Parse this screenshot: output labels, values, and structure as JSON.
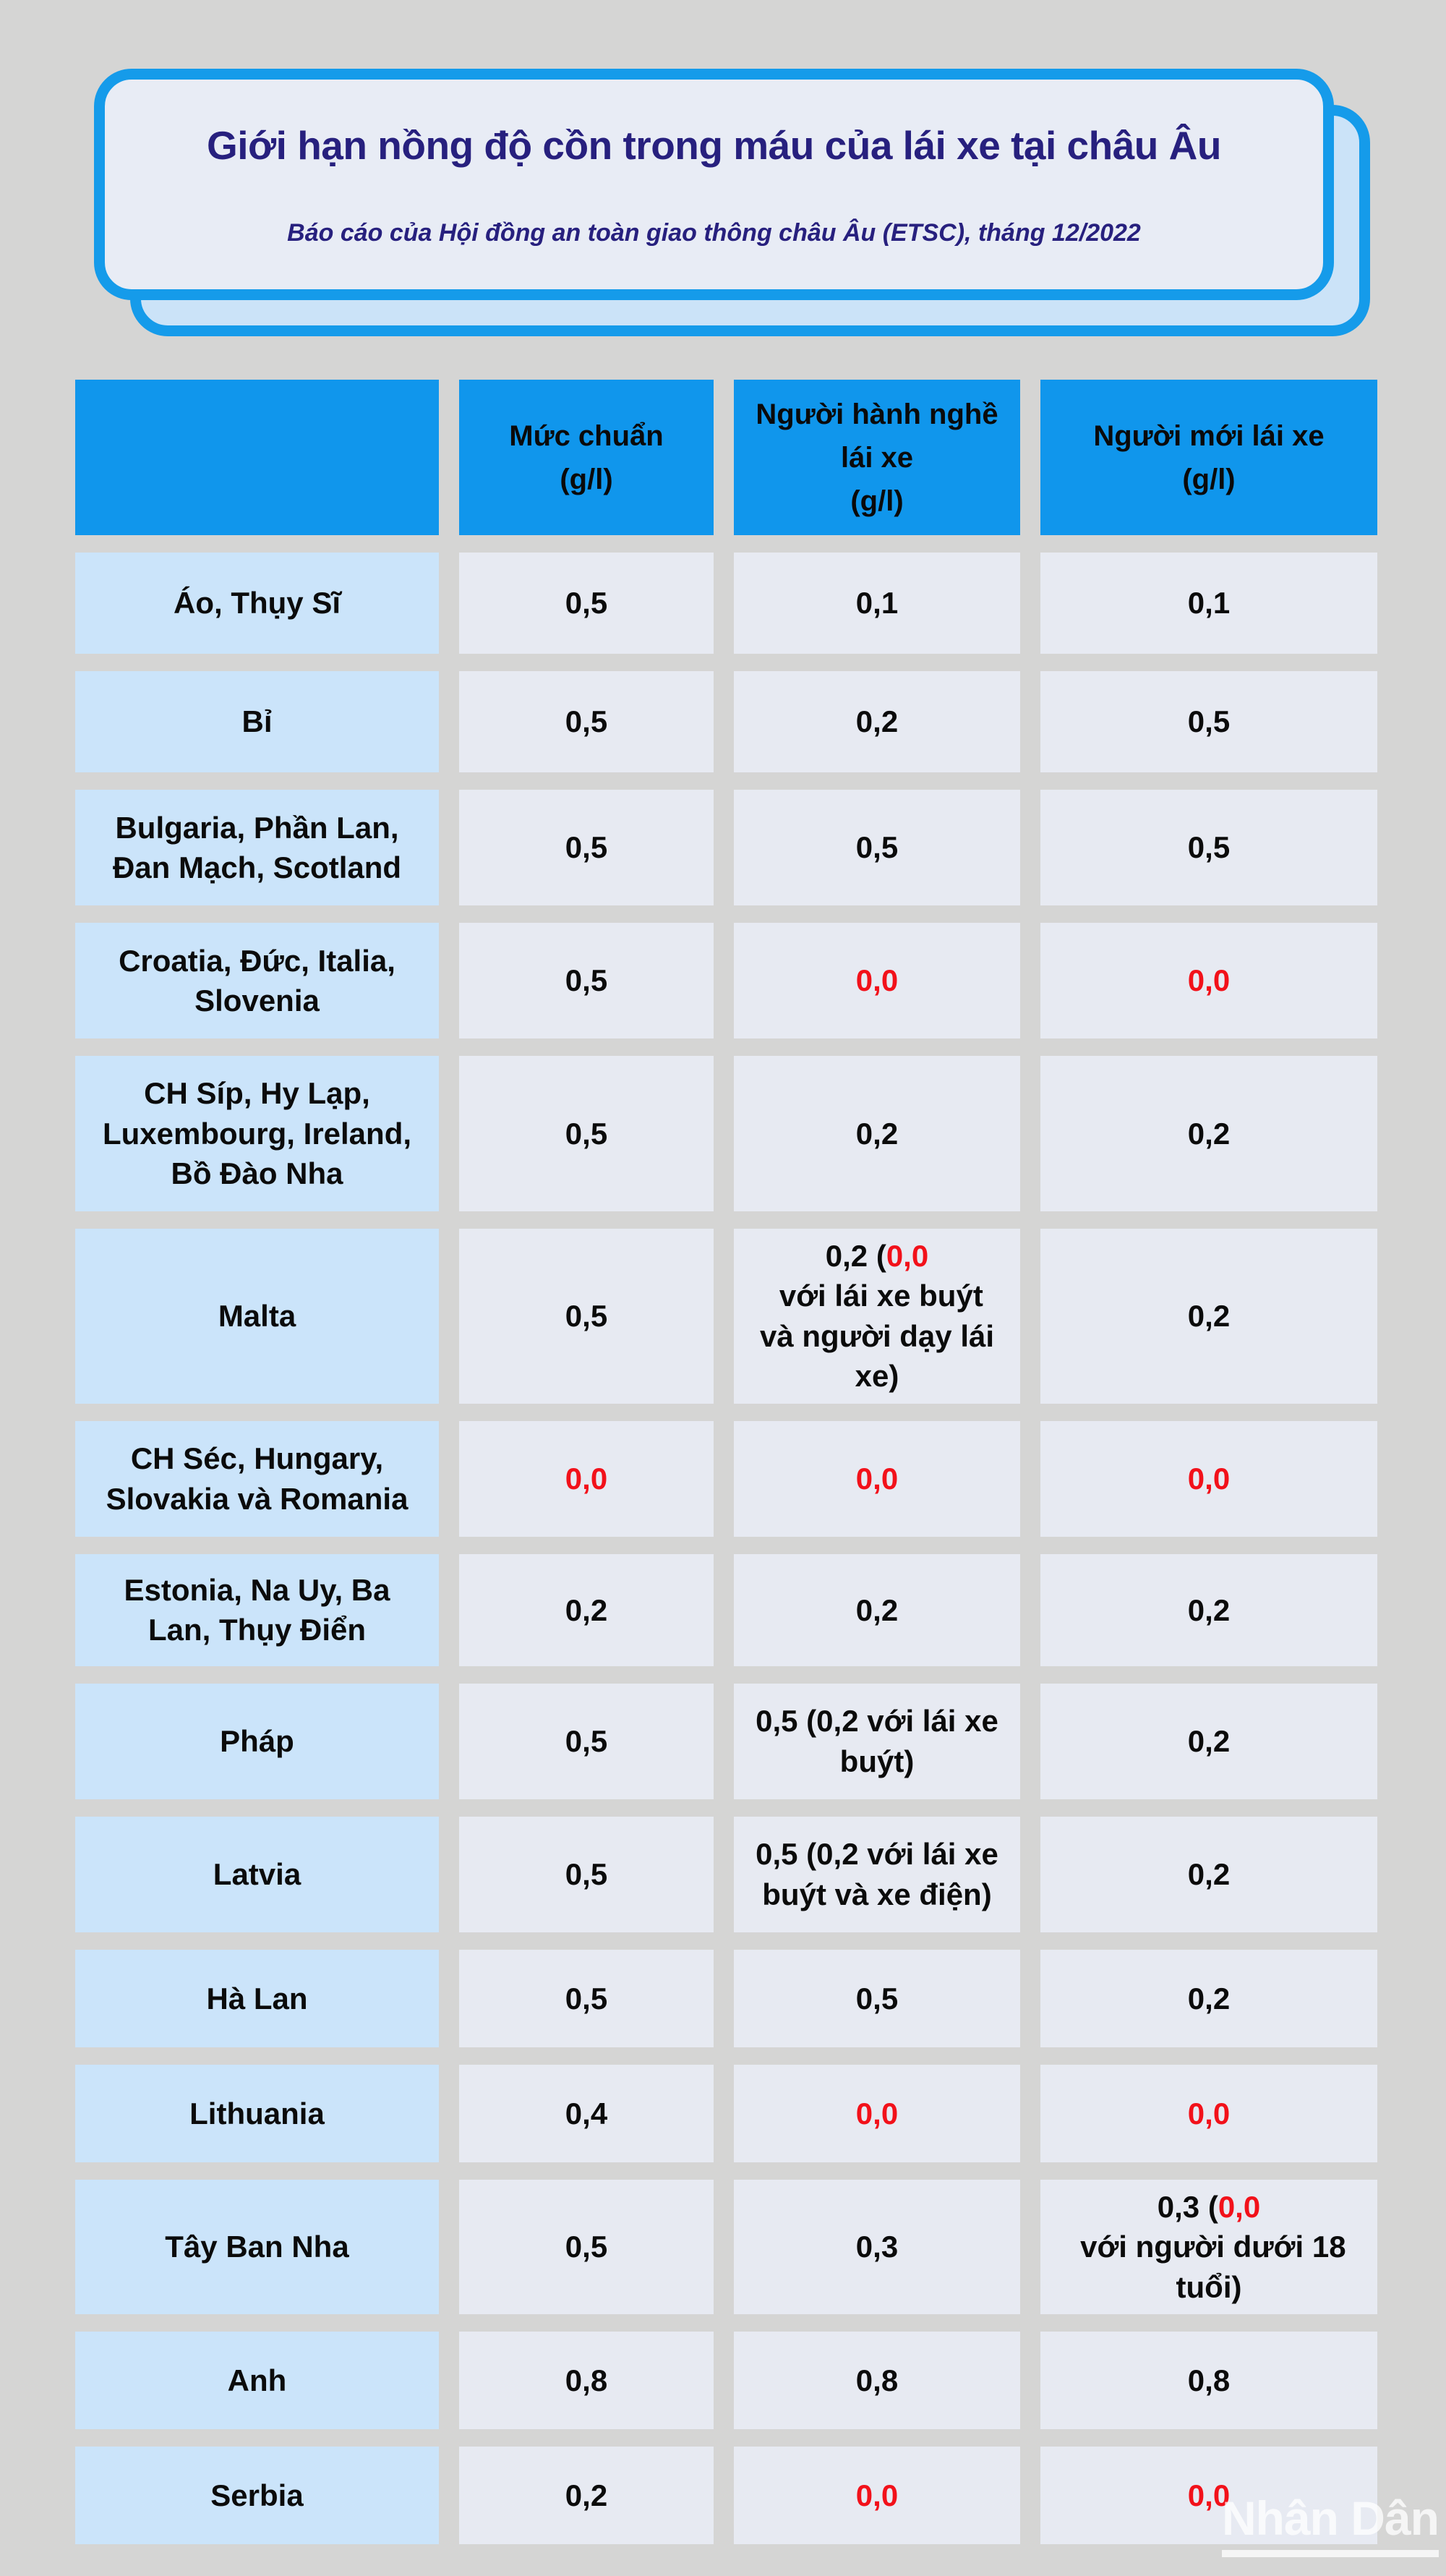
{
  "page": {
    "background": "#d5d5d4"
  },
  "header_card": {
    "title": "Giới hạn nồng độ cồn trong máu của lái xe tại châu Âu",
    "subtitle": "Báo cáo của Hội đồng an toàn giao thông châu Âu (ETSC), tháng 12/2022",
    "accent_blue": "#159bea",
    "card_bg": "#e8ecf5",
    "back_card_bg": "#cbe3f8",
    "title_color": "#27207e"
  },
  "table": {
    "header_bg": "#1096ec",
    "country_bg": "#cbe4fa",
    "value_bg": "#e7eaf2",
    "red_value_color": "#f2111a",
    "text_color": "#0b0b0b",
    "columns": [
      {
        "lines": []
      },
      {
        "lines": [
          "Mức chuẩn",
          "(g/l)"
        ]
      },
      {
        "lines": [
          "Người hành nghề",
          "lái xe",
          "(g/l)"
        ]
      },
      {
        "lines": [
          "Người mới lái xe",
          "(g/l)"
        ]
      }
    ],
    "rows": [
      {
        "country": "Áo, Thụy Sĩ",
        "values": [
          [
            {
              "t": "0,5"
            }
          ],
          [
            {
              "t": "0,1"
            }
          ],
          [
            {
              "t": "0,1"
            }
          ]
        ]
      },
      {
        "country": "Bỉ",
        "values": [
          [
            {
              "t": "0,5"
            }
          ],
          [
            {
              "t": "0,2"
            }
          ],
          [
            {
              "t": "0,5"
            }
          ]
        ]
      },
      {
        "country": "Bulgaria, Phần Lan, Đan Mạch, Scotland",
        "values": [
          [
            {
              "t": "0,5"
            }
          ],
          [
            {
              "t": "0,5"
            }
          ],
          [
            {
              "t": "0,5"
            }
          ]
        ]
      },
      {
        "country": "Croatia, Đức, Italia, Slovenia",
        "values": [
          [
            {
              "t": "0,5"
            }
          ],
          [
            {
              "t": "0,0",
              "red": true
            }
          ],
          [
            {
              "t": "0,0",
              "red": true
            }
          ]
        ]
      },
      {
        "country": "CH Síp, Hy Lạp, Luxembourg, Ireland, Bồ Đào Nha",
        "values": [
          [
            {
              "t": "0,5"
            }
          ],
          [
            {
              "t": "0,2"
            }
          ],
          [
            {
              "t": "0,2"
            }
          ]
        ]
      },
      {
        "country": "Malta",
        "values": [
          [
            {
              "t": "0,5"
            }
          ],
          [
            {
              "t": "0,2 ("
            },
            {
              "t": "0,0",
              "red": true
            },
            {
              "t": " với lái xe buýt và người dạy lái xe)"
            }
          ],
          [
            {
              "t": "0,2"
            }
          ]
        ]
      },
      {
        "country": "CH Séc, Hungary, Slovakia và Romania",
        "values": [
          [
            {
              "t": "0,0",
              "red": true
            }
          ],
          [
            {
              "t": "0,0",
              "red": true
            }
          ],
          [
            {
              "t": "0,0",
              "red": true
            }
          ]
        ]
      },
      {
        "country": "Estonia, Na Uy, Ba Lan, Thụy Điển",
        "values": [
          [
            {
              "t": "0,2"
            }
          ],
          [
            {
              "t": "0,2"
            }
          ],
          [
            {
              "t": "0,2"
            }
          ]
        ]
      },
      {
        "country": "Pháp",
        "values": [
          [
            {
              "t": "0,5"
            }
          ],
          [
            {
              "t": "0,5 (0,2 với lái xe buýt)"
            }
          ],
          [
            {
              "t": "0,2"
            }
          ]
        ]
      },
      {
        "country": "Latvia",
        "values": [
          [
            {
              "t": "0,5"
            }
          ],
          [
            {
              "t": "0,5 (0,2 với lái xe buýt và xe điện)"
            }
          ],
          [
            {
              "t": "0,2"
            }
          ]
        ]
      },
      {
        "country": "Hà Lan",
        "values": [
          [
            {
              "t": "0,5"
            }
          ],
          [
            {
              "t": "0,5"
            }
          ],
          [
            {
              "t": "0,2"
            }
          ]
        ]
      },
      {
        "country": "Lithuania",
        "values": [
          [
            {
              "t": "0,4"
            }
          ],
          [
            {
              "t": "0,0",
              "red": true
            }
          ],
          [
            {
              "t": "0,0",
              "red": true
            }
          ]
        ]
      },
      {
        "country": "Tây Ban Nha",
        "values": [
          [
            {
              "t": "0,5"
            }
          ],
          [
            {
              "t": "0,3"
            }
          ],
          [
            {
              "t": "0,3 ("
            },
            {
              "t": "0,0",
              "red": true
            },
            {
              "t": " với người dưới 18 tuổi)"
            }
          ]
        ]
      },
      {
        "country": "Anh",
        "values": [
          [
            {
              "t": "0,8"
            }
          ],
          [
            {
              "t": "0,8"
            }
          ],
          [
            {
              "t": "0,8"
            }
          ]
        ]
      },
      {
        "country": "Serbia",
        "values": [
          [
            {
              "t": "0,2"
            }
          ],
          [
            {
              "t": "0,0",
              "red": true
            }
          ],
          [
            {
              "t": "0,0",
              "red": true
            }
          ]
        ]
      }
    ]
  },
  "watermark": {
    "text": "Nhân Dân"
  },
  "chart_data": {
    "type": "table",
    "title": "Giới hạn nồng độ cồn trong máu của lái xe tại châu Âu",
    "subtitle": "Báo cáo của Hội đồng an toàn giao thông châu Âu (ETSC), tháng 12/2022",
    "columns": [
      "",
      "Mức chuẩn (g/l)",
      "Người hành nghề lái xe (g/l)",
      "Người mới lái xe (g/l)"
    ],
    "rows": [
      [
        "Áo, Thụy Sĩ",
        "0,5",
        "0,1",
        "0,1"
      ],
      [
        "Bỉ",
        "0,5",
        "0,2",
        "0,5"
      ],
      [
        "Bulgaria, Phần Lan, Đan Mạch, Scotland",
        "0,5",
        "0,5",
        "0,5"
      ],
      [
        "Croatia, Đức, Italia, Slovenia",
        "0,5",
        "0,0",
        "0,0"
      ],
      [
        "CH Síp, Hy Lạp, Luxembourg, Ireland, Bồ Đào Nha",
        "0,5",
        "0,2",
        "0,2"
      ],
      [
        "Malta",
        "0,5",
        "0,2 (0,0 với lái xe buýt và người dạy lái xe)",
        "0,2"
      ],
      [
        "CH Séc, Hungary, Slovakia và Romania",
        "0,0",
        "0,0",
        "0,0"
      ],
      [
        "Estonia, Na Uy, Ba Lan, Thụy Điển",
        "0,2",
        "0,2",
        "0,2"
      ],
      [
        "Pháp",
        "0,5",
        "0,5 (0,2 với lái xe buýt)",
        "0,2"
      ],
      [
        "Latvia",
        "0,5",
        "0,5 (0,2 với lái xe buýt và xe điện)",
        "0,2"
      ],
      [
        "Hà Lan",
        "0,5",
        "0,5",
        "0,2"
      ],
      [
        "Lithuania",
        "0,4",
        "0,0",
        "0,0"
      ],
      [
        "Tây Ban Nha",
        "0,5",
        "0,3",
        "0,3 (0,0 với người dưới 18 tuổi)"
      ],
      [
        "Anh",
        "0,8",
        "0,8",
        "0,8"
      ],
      [
        "Serbia",
        "0,2",
        "0,0",
        "0,0"
      ]
    ],
    "layout_hints": {
      "red_cells_mean": "values shown in red in source",
      "grid": "separated blocks on gray background"
    }
  }
}
